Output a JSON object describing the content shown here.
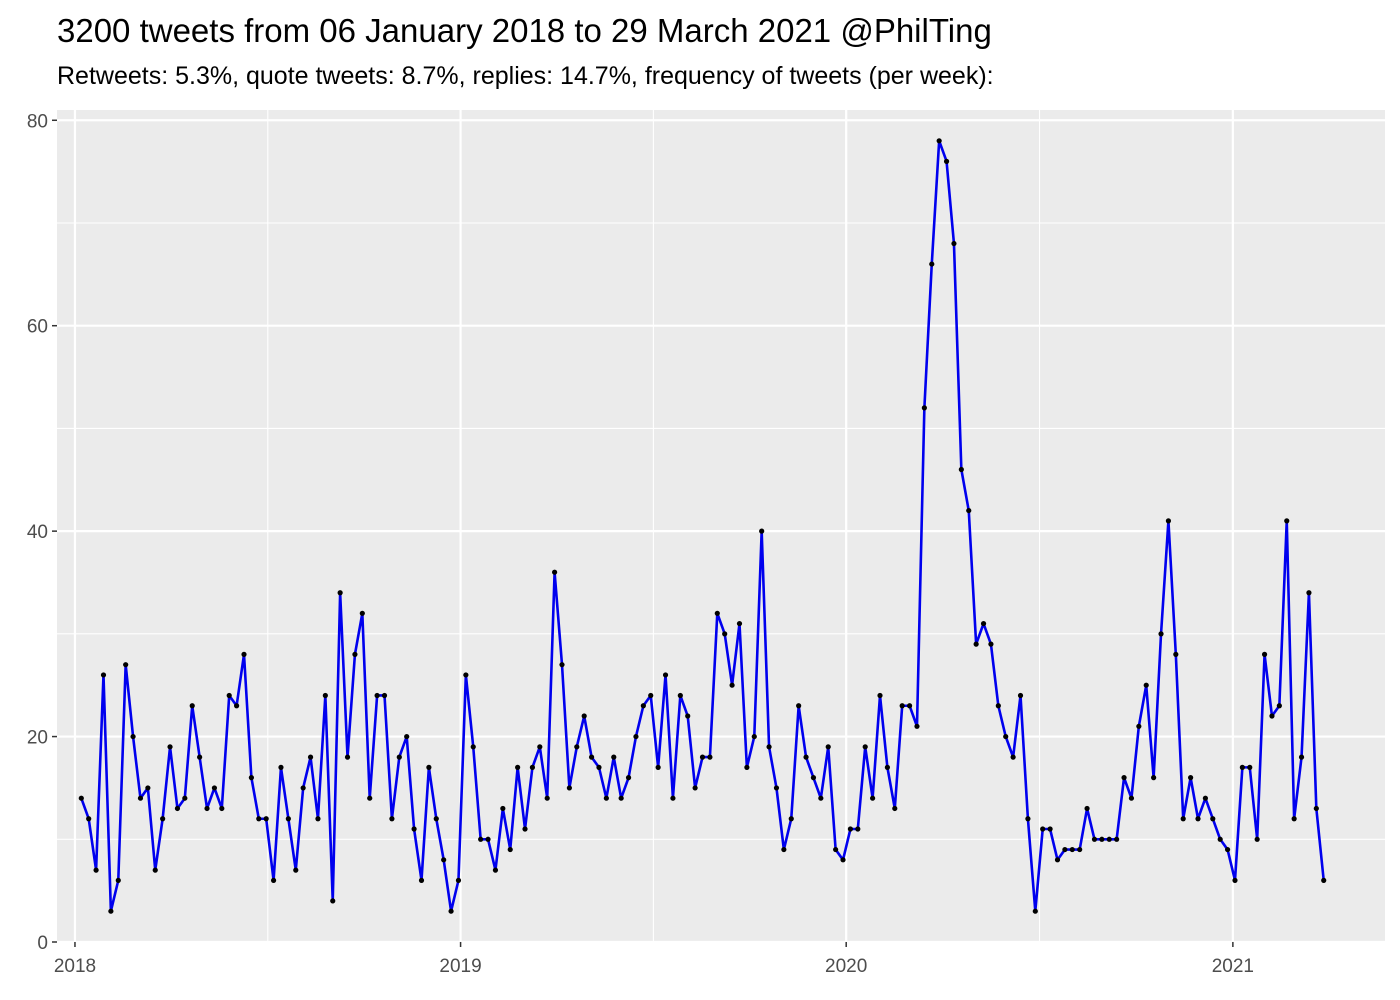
{
  "title": "3200 tweets from 06 January 2018 to 29 March 2021 @PhilTing",
  "subtitle": "Retweets: 5.3%, quote tweets: 8.7%, replies: 14.7%, frequency of tweets (per week):",
  "colors": {
    "panel": "#ebebeb",
    "grid": "#ffffff",
    "line": "#0000ee",
    "point": "#000000",
    "axis_text": "#4d4d4d"
  },
  "chart_data": {
    "type": "line",
    "title": "3200 tweets from 06 January 2018 to 29 March 2021 @PhilTing",
    "subtitle": "Retweets: 5.3%, quote tweets: 8.7%, replies: 14.7%, frequency of tweets (per week):",
    "xlabel": "",
    "ylabel": "",
    "x_type": "date",
    "xlim": [
      "2017-12-15",
      "2021-05-25"
    ],
    "ylim": [
      0,
      81
    ],
    "x_ticks": [
      {
        "value": "2018-01-01",
        "label": "2018"
      },
      {
        "value": "2019-01-01",
        "label": "2019"
      },
      {
        "value": "2020-01-01",
        "label": "2020"
      },
      {
        "value": "2021-01-01",
        "label": "2021"
      }
    ],
    "y_ticks": [
      0,
      20,
      40,
      60,
      80
    ],
    "grid": true,
    "legend": "none",
    "series": [
      {
        "x": [
          "2018-01-07",
          "2018-01-14",
          "2018-01-21",
          "2018-01-28",
          "2018-02-04",
          "2018-02-11",
          "2018-02-18",
          "2018-02-25",
          "2018-03-04",
          "2018-03-11",
          "2018-03-18",
          "2018-03-25",
          "2018-04-01",
          "2018-04-08",
          "2018-04-15",
          "2018-04-22",
          "2018-04-29",
          "2018-05-06",
          "2018-05-13",
          "2018-05-20",
          "2018-05-27",
          "2018-06-03",
          "2018-06-10",
          "2018-06-17",
          "2018-06-24",
          "2018-07-01",
          "2018-07-08",
          "2018-07-15",
          "2018-07-22",
          "2018-07-29",
          "2018-08-05",
          "2018-08-12",
          "2018-08-19",
          "2018-08-26",
          "2018-09-02",
          "2018-09-09",
          "2018-09-16",
          "2018-09-23",
          "2018-09-30",
          "2018-10-07",
          "2018-10-14",
          "2018-10-21",
          "2018-10-28",
          "2018-11-04",
          "2018-11-11",
          "2018-11-18",
          "2018-11-25",
          "2018-12-02",
          "2018-12-09",
          "2018-12-16",
          "2018-12-23",
          "2018-12-30",
          "2019-01-06",
          "2019-01-13",
          "2019-01-20",
          "2019-01-27",
          "2019-02-03",
          "2019-02-10",
          "2019-02-17",
          "2019-02-24",
          "2019-03-03",
          "2019-03-10",
          "2019-03-17",
          "2019-03-24",
          "2019-03-31",
          "2019-04-07",
          "2019-04-14",
          "2019-04-21",
          "2019-04-28",
          "2019-05-05",
          "2019-05-12",
          "2019-05-19",
          "2019-05-26",
          "2019-06-02",
          "2019-06-09",
          "2019-06-16",
          "2019-06-23",
          "2019-06-30",
          "2019-07-07",
          "2019-07-14",
          "2019-07-21",
          "2019-07-28",
          "2019-08-04",
          "2019-08-11",
          "2019-08-18",
          "2019-08-25",
          "2019-09-01",
          "2019-09-08",
          "2019-09-15",
          "2019-09-22",
          "2019-09-29",
          "2019-10-06",
          "2019-10-13",
          "2019-10-20",
          "2019-10-27",
          "2019-11-03",
          "2019-11-10",
          "2019-11-17",
          "2019-11-24",
          "2019-12-01",
          "2019-12-08",
          "2019-12-15",
          "2019-12-22",
          "2019-12-29",
          "2020-01-05",
          "2020-01-12",
          "2020-01-19",
          "2020-01-26",
          "2020-02-02",
          "2020-02-09",
          "2020-02-16",
          "2020-02-23",
          "2020-03-01",
          "2020-03-08",
          "2020-03-15",
          "2020-03-22",
          "2020-03-29",
          "2020-04-05",
          "2020-04-12",
          "2020-04-19",
          "2020-04-26",
          "2020-05-03",
          "2020-05-10",
          "2020-05-17",
          "2020-05-24",
          "2020-05-31",
          "2020-06-07",
          "2020-06-14",
          "2020-06-21",
          "2020-06-28",
          "2020-07-05",
          "2020-07-12",
          "2020-07-19",
          "2020-07-26",
          "2020-08-02",
          "2020-08-09",
          "2020-08-16",
          "2020-08-23",
          "2020-08-30",
          "2020-09-06",
          "2020-09-13",
          "2020-09-20",
          "2020-09-27",
          "2020-10-04",
          "2020-10-11",
          "2020-10-18",
          "2020-10-25",
          "2020-11-01",
          "2020-11-08",
          "2020-11-15",
          "2020-11-22",
          "2020-11-29",
          "2020-12-06",
          "2020-12-13",
          "2020-12-20",
          "2020-12-27",
          "2021-01-03",
          "2021-01-10",
          "2021-01-17",
          "2021-01-24",
          "2021-01-31",
          "2021-02-07",
          "2021-02-14",
          "2021-02-21",
          "2021-02-28",
          "2021-03-07",
          "2021-03-14",
          "2021-03-21",
          "2021-03-28"
        ],
        "values": [
          14,
          12,
          7,
          26,
          3,
          6,
          27,
          20,
          14,
          15,
          7,
          12,
          19,
          13,
          14,
          23,
          18,
          13,
          15,
          13,
          24,
          23,
          28,
          16,
          12,
          12,
          6,
          17,
          12,
          7,
          15,
          18,
          12,
          24,
          4,
          34,
          18,
          28,
          32,
          14,
          24,
          24,
          12,
          18,
          20,
          11,
          6,
          17,
          12,
          8,
          3,
          6,
          26,
          19,
          10,
          10,
          7,
          13,
          9,
          17,
          11,
          17,
          19,
          14,
          36,
          27,
          15,
          19,
          22,
          18,
          17,
          14,
          18,
          14,
          16,
          20,
          23,
          24,
          17,
          26,
          14,
          24,
          22,
          15,
          18,
          18,
          32,
          30,
          25,
          31,
          17,
          20,
          40,
          19,
          15,
          9,
          12,
          23,
          18,
          16,
          14,
          19,
          9,
          8,
          11,
          11,
          19,
          14,
          24,
          17,
          13,
          23,
          23,
          21,
          52,
          66,
          78,
          76,
          68,
          46,
          42,
          29,
          31,
          29,
          23,
          20,
          18,
          24,
          12,
          3,
          11,
          11,
          8,
          9,
          9,
          9,
          13,
          10,
          10,
          10,
          10,
          16,
          14,
          21,
          25,
          16,
          30,
          41,
          28,
          12,
          16,
          12,
          14,
          12,
          10,
          9,
          6,
          17,
          17,
          10,
          28,
          22,
          23,
          41,
          12,
          18,
          34,
          13,
          6
        ]
      }
    ]
  }
}
